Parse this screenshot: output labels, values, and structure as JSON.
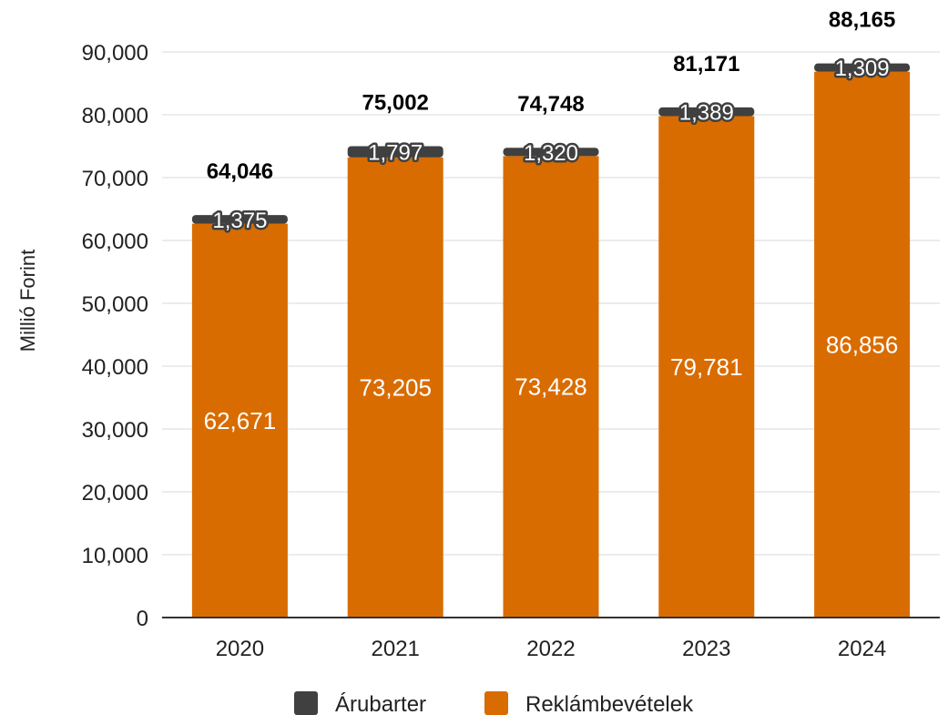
{
  "chart_data": {
    "type": "bar",
    "stacked": true,
    "categories": [
      "2020",
      "2021",
      "2022",
      "2023",
      "2024"
    ],
    "series": [
      {
        "name": "Reklámbevételek",
        "color": "#d96c00",
        "values": [
          62671,
          73205,
          73428,
          79781,
          86856
        ]
      },
      {
        "name": "Árubarter",
        "color": "#404040",
        "values": [
          1375,
          1797,
          1320,
          1389,
          1309
        ]
      }
    ],
    "segment_labels": {
      "Reklámbevételek": [
        "62,671",
        "73,205",
        "73,428",
        "79,781",
        "86,856"
      ],
      "Árubarter": [
        "1,375",
        "1,797",
        "1,320",
        "1,389",
        "1,309"
      ]
    },
    "totals": [
      64046,
      75002,
      74748,
      81171,
      88165
    ],
    "total_labels": [
      "64,046",
      "75,002",
      "74,748",
      "81,171",
      "88,165"
    ],
    "ylabel": "Millió Forint",
    "xlabel": "",
    "ylim": [
      0,
      90000
    ],
    "y_ticks": [
      0,
      10000,
      20000,
      30000,
      40000,
      50000,
      60000,
      70000,
      80000,
      90000
    ],
    "y_tick_labels": [
      "0",
      "10,000",
      "20,000",
      "30,000",
      "40,000",
      "50,000",
      "60,000",
      "70,000",
      "80,000",
      "90,000"
    ],
    "grid": true,
    "legend_position": "bottom",
    "legend_order": [
      "Árubarter",
      "Reklámbevételek"
    ]
  }
}
